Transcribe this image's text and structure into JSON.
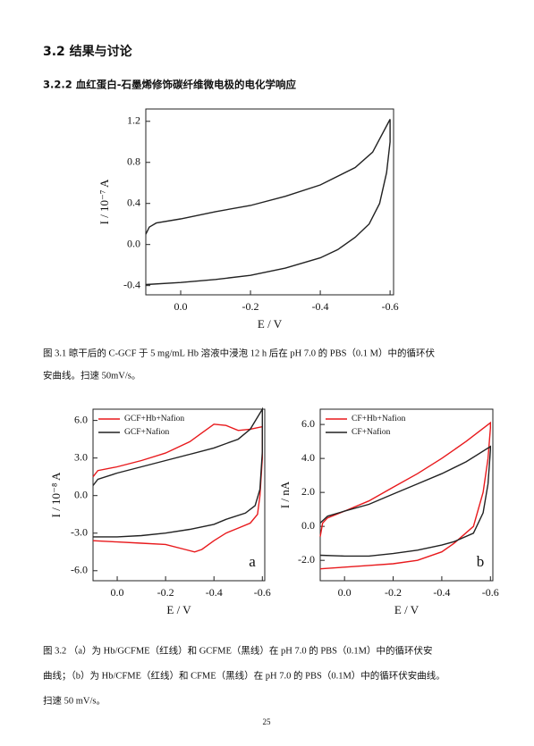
{
  "header": {
    "section": "3.2 结果与讨论",
    "subsection": "3.2.2 血红蛋白-石墨烯修饰碳纤维微电极的电化学响应"
  },
  "chart_data": [
    {
      "type": "line",
      "x_label": "E / V",
      "y_label": "I / 10⁻⁷ A",
      "xlim": [
        0.1,
        -0.61
      ],
      "ylim": [
        -0.49,
        1.32
      ],
      "xticks": [
        {
          "value": 0,
          "label": "0.0"
        },
        -0.2,
        -0.4,
        -0.6
      ],
      "yticks": [
        1.2,
        0.8,
        0.4,
        {
          "value": 0,
          "label": "0.0"
        },
        -0.4
      ],
      "series": [
        {
          "color": "#222222",
          "x": [
            0.1,
            0.09,
            0.07,
            0.0,
            -0.1,
            -0.2,
            -0.3,
            -0.4,
            -0.5,
            -0.55,
            -0.6,
            -0.6,
            -0.59,
            -0.57,
            -0.54,
            -0.5,
            -0.45,
            -0.4,
            -0.3,
            -0.2,
            -0.1,
            0.0,
            0.1
          ],
          "values": [
            0.1,
            0.17,
            0.21,
            0.25,
            0.32,
            0.38,
            0.47,
            0.58,
            0.75,
            0.9,
            1.22,
            1.0,
            0.7,
            0.4,
            0.2,
            0.07,
            -0.05,
            -0.13,
            -0.23,
            -0.3,
            -0.34,
            -0.37,
            -0.39
          ]
        }
      ]
    },
    {
      "type": "line",
      "x_label": "E / V",
      "y_label": "I / 10⁻⁸ A",
      "annotation": "a",
      "legend": "upper left",
      "xlim": [
        0.1,
        -0.61
      ],
      "ylim": [
        -6.8,
        6.9
      ],
      "xticks": [
        {
          "value": 0,
          "label": "0.0"
        },
        -0.2,
        -0.4,
        -0.6
      ],
      "yticks": [
        {
          "value": 6,
          "label": "6.0"
        },
        {
          "value": 3,
          "label": "3.0"
        },
        {
          "value": 0,
          "label": "0.0"
        },
        {
          "value": -3,
          "label": "-3.0"
        },
        {
          "value": -6,
          "label": "-6.0"
        }
      ],
      "series": [
        {
          "name": "GCF+Hb+Nafion",
          "color": "#e8191c",
          "x": [
            0.1,
            0.08,
            0.0,
            -0.1,
            -0.2,
            -0.3,
            -0.35,
            -0.4,
            -0.45,
            -0.5,
            -0.55,
            -0.6,
            -0.6,
            -0.59,
            -0.58,
            -0.55,
            -0.5,
            -0.45,
            -0.4,
            -0.35,
            -0.32,
            -0.28,
            -0.2,
            -0.1,
            0.0,
            0.1
          ],
          "values": [
            1.5,
            2.0,
            2.3,
            2.8,
            3.4,
            4.3,
            5.0,
            5.7,
            5.6,
            5.2,
            5.3,
            5.5,
            3.0,
            0.0,
            -1.5,
            -2.2,
            -2.6,
            -3.0,
            -3.6,
            -4.3,
            -4.5,
            -4.3,
            -3.9,
            -3.8,
            -3.7,
            -3.6
          ]
        },
        {
          "name": "GCF+Nafion",
          "color": "#222222",
          "x": [
            0.1,
            0.08,
            0.0,
            -0.1,
            -0.2,
            -0.3,
            -0.4,
            -0.5,
            -0.55,
            -0.6,
            -0.6,
            -0.59,
            -0.57,
            -0.53,
            -0.45,
            -0.4,
            -0.3,
            -0.2,
            -0.1,
            0.0,
            0.1
          ],
          "values": [
            0.8,
            1.3,
            1.8,
            2.3,
            2.8,
            3.3,
            3.8,
            4.5,
            5.3,
            6.9,
            3.5,
            0.5,
            -0.8,
            -1.4,
            -1.9,
            -2.3,
            -2.7,
            -3.0,
            -3.2,
            -3.3,
            -3.3
          ]
        }
      ]
    },
    {
      "type": "line",
      "x_label": "E / V",
      "y_label": "I / nA",
      "annotation": "b",
      "legend": "upper left",
      "xlim": [
        0.1,
        -0.61
      ],
      "ylim": [
        -3.2,
        6.9
      ],
      "xticks": [
        {
          "value": 0,
          "label": "0.0"
        },
        -0.2,
        -0.4,
        -0.6
      ],
      "yticks": [
        {
          "value": 6,
          "label": "6.0"
        },
        {
          "value": 4,
          "label": "4.0"
        },
        {
          "value": 2,
          "label": "2.0"
        },
        {
          "value": 0,
          "label": "0.0"
        },
        {
          "value": -2,
          "label": "-2.0"
        }
      ],
      "series": [
        {
          "name": "CF+Hb+Nafion",
          "color": "#e8191c",
          "x": [
            0.1,
            0.09,
            0.07,
            0.0,
            -0.1,
            -0.2,
            -0.3,
            -0.4,
            -0.5,
            -0.6,
            -0.6,
            -0.59,
            -0.57,
            -0.53,
            -0.45,
            -0.4,
            -0.3,
            -0.2,
            -0.1,
            0.0,
            0.1
          ],
          "values": [
            -0.6,
            0.2,
            0.5,
            0.9,
            1.5,
            2.3,
            3.1,
            4.0,
            5.0,
            6.1,
            5.8,
            4.0,
            2.0,
            0.0,
            -1.0,
            -1.5,
            -2.0,
            -2.2,
            -2.3,
            -2.4,
            -2.5
          ]
        },
        {
          "name": "CF+Nafion",
          "color": "#222222",
          "x": [
            0.1,
            0.07,
            0.0,
            -0.1,
            -0.2,
            -0.3,
            -0.4,
            -0.5,
            -0.6,
            -0.6,
            -0.59,
            -0.57,
            -0.53,
            -0.45,
            -0.4,
            -0.3,
            -0.2,
            -0.1,
            0.0,
            0.1
          ],
          "values": [
            0.2,
            0.6,
            0.9,
            1.3,
            1.9,
            2.5,
            3.1,
            3.8,
            4.7,
            4.5,
            2.5,
            0.8,
            -0.4,
            -0.9,
            -1.1,
            -1.4,
            -1.6,
            -1.75,
            -1.75,
            -1.7
          ]
        }
      ]
    }
  ],
  "captions": {
    "fig_3_1": [
      "图 3.1 晾干后的 C-GCF 于 5 mg/mL Hb 溶液中浸泡 12 h 后在 pH 7.0 的 PBS（0.1 M）中的循环伏",
      "安曲线。扫速 50mV/s。"
    ],
    "fig_3_2": [
      "图 3.2 （a）为 Hb/GCFME（红线）和 GCFME（黑线）在 pH 7.0 的 PBS（0.1M）中的循环伏安",
      "曲线；（b）为 Hb/CFME（红线）和 CFME（黑线）在 pH 7.0 的 PBS（0.1M）中的循环伏安曲线。",
      "扫速 50 mV/s。"
    ]
  },
  "page_number": "25"
}
